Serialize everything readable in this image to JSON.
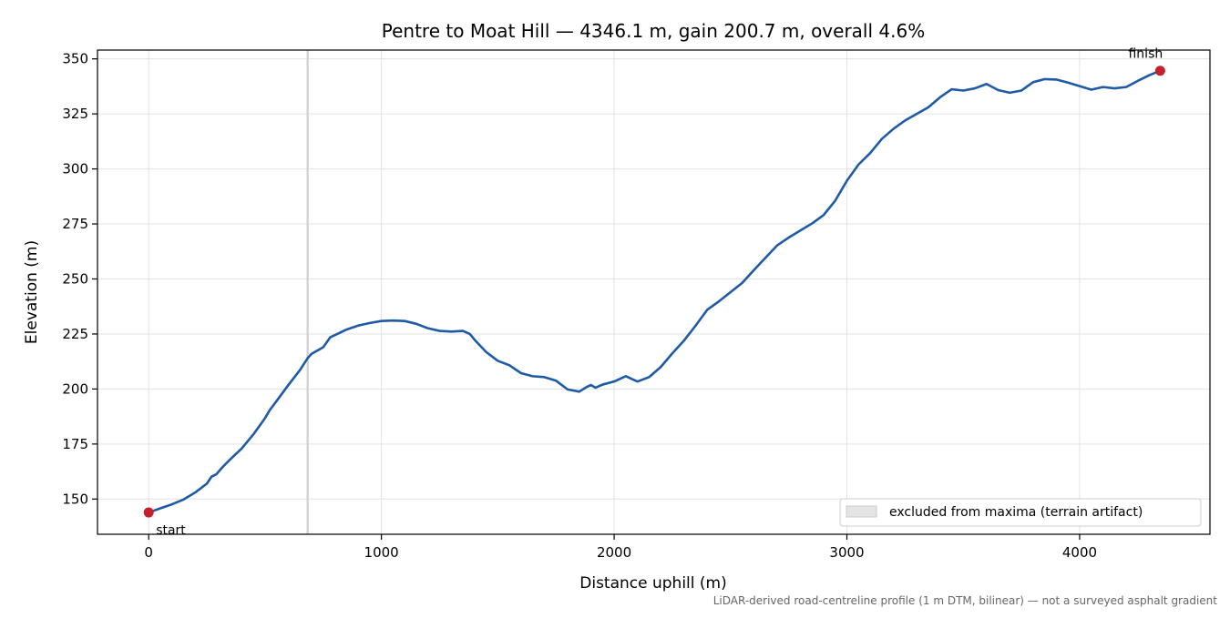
{
  "chart_data": {
    "type": "line",
    "title": "Pentre to Moat Hill — 4346.1 m, gain 200.7 m, overall 4.6%",
    "xlabel": "Distance uphill (m)",
    "ylabel": "Elevation (m)",
    "xlim": [
      -220,
      4560
    ],
    "ylim": [
      134,
      354
    ],
    "xticks": [
      0,
      1000,
      2000,
      3000,
      4000
    ],
    "yticks": [
      150,
      175,
      200,
      225,
      250,
      275,
      300,
      325,
      350
    ],
    "grid": true,
    "legend_position": "bottom-right",
    "legend_entries": [
      "excluded from maxima (terrain artifact)"
    ],
    "excluded_x": 683,
    "footnote": "LiDAR-derived road-centreline profile (1 m DTM, bilinear) — not a surveyed asphalt gradient",
    "colors": {
      "line": "#1f5aa6",
      "marker": "#c4202f",
      "excluded": "#d3d3d3"
    },
    "markers": [
      {
        "label": "start",
        "x": 0,
        "y": 143.9
      },
      {
        "label": "finish",
        "x": 4346.1,
        "y": 344.6
      }
    ],
    "series": [
      {
        "x": [
          0,
          50,
          100,
          150,
          200,
          250,
          270,
          290,
          320,
          350,
          400,
          450,
          500,
          520,
          550,
          600,
          650,
          683,
          700,
          750,
          780,
          800,
          830,
          850,
          900,
          950,
          1000,
          1050,
          1100,
          1150,
          1200,
          1250,
          1300,
          1350,
          1380,
          1400,
          1450,
          1500,
          1550,
          1600,
          1650,
          1700,
          1750,
          1800,
          1850,
          1880,
          1900,
          1920,
          1950,
          2000,
          2050,
          2100,
          2150,
          2200,
          2250,
          2300,
          2350,
          2400,
          2450,
          2500,
          2550,
          2600,
          2650,
          2700,
          2750,
          2800,
          2850,
          2900,
          2950,
          3000,
          3050,
          3100,
          3150,
          3200,
          3250,
          3300,
          3350,
          3400,
          3450,
          3500,
          3550,
          3600,
          3650,
          3700,
          3750,
          3800,
          3850,
          3900,
          3950,
          4000,
          4050,
          4100,
          4150,
          4200,
          4250,
          4300,
          4346.1
        ],
        "y": [
          143.9,
          145.8,
          147.6,
          149.8,
          153.0,
          157.0,
          160.2,
          161.2,
          164.8,
          168.0,
          173.0,
          179.4,
          186.8,
          190.4,
          194.6,
          201.8,
          208.6,
          214.0,
          216.0,
          219.0,
          223.5,
          224.5,
          226.0,
          227.0,
          228.8,
          230.0,
          230.9,
          231.1,
          230.9,
          229.6,
          227.6,
          226.4,
          226.1,
          226.4,
          225.0,
          222.4,
          216.8,
          212.8,
          210.8,
          207.2,
          205.8,
          205.4,
          203.8,
          199.8,
          198.8,
          200.8,
          201.8,
          200.6,
          202.0,
          203.4,
          205.8,
          203.4,
          205.4,
          210.0,
          216.2,
          222.0,
          228.8,
          236.0,
          239.8,
          244.0,
          248.2,
          254.0,
          259.6,
          265.2,
          268.8,
          272.0,
          275.2,
          279.0,
          285.6,
          294.6,
          302.0,
          307.2,
          313.6,
          318.2,
          322.0,
          325.0,
          328.0,
          332.5,
          336.2,
          335.6,
          336.6,
          338.6,
          335.8,
          334.6,
          335.6,
          339.4,
          340.8,
          340.6,
          339.2,
          337.6,
          336.0,
          337.2,
          336.6,
          337.2,
          340.0,
          342.6,
          344.6
        ]
      }
    ]
  }
}
